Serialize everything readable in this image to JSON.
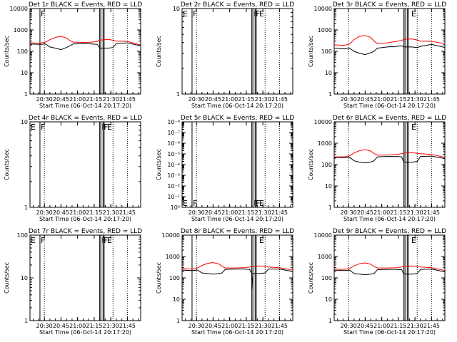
{
  "figure": {
    "start_time_label": "Start Time (06-Oct-14 20:17:20)",
    "ylabel": "Counts/sec",
    "x_tick_labels": [
      "20:30",
      "20:45",
      "21:00",
      "21:15",
      "21:30",
      "21:45"
    ],
    "colors": {
      "events": "#000000",
      "lld": "#ff0000"
    }
  },
  "chart_data": [
    {
      "type": "line",
      "title": "Det 1r BLACK = Events, RED = LLD",
      "ylabel": "Counts/sec",
      "xlabel": "Start Time (06-Oct-14 20:17:20)",
      "y_scale": "log",
      "ylim": [
        1,
        10000
      ],
      "y_tick_labels": [
        "1",
        "10",
        "100",
        "1000",
        "10000"
      ],
      "x_tick_labels": [
        "20:30",
        "20:45",
        "21:00",
        "21:15",
        "21:30",
        "21:45"
      ],
      "xlim": [
        "20:17",
        "21:57"
      ],
      "series": [
        {
          "name": "Events",
          "color": "#000000",
          "x": [
            "20:17",
            "20:26",
            "20:31",
            "20:35",
            "20:40",
            "20:45",
            "20:50",
            "20:53",
            "20:56",
            "21:05",
            "21:13",
            "21:18",
            "21:20",
            "21:27",
            "21:32",
            "21:35",
            "21:45",
            "21:57"
          ],
          "y": [
            220,
            210,
            220,
            160,
            140,
            120,
            150,
            180,
            220,
            230,
            220,
            210,
            140,
            140,
            150,
            230,
            250,
            180
          ]
        },
        {
          "name": "LLD",
          "color": "#ff0000",
          "x": [
            "20:17",
            "20:26",
            "20:31",
            "20:35",
            "20:40",
            "20:45",
            "20:50",
            "20:53",
            "20:56",
            "21:05",
            "21:13",
            "21:18",
            "21:20",
            "21:27",
            "21:32",
            "21:35",
            "21:45",
            "21:57"
          ],
          "y": [
            250,
            240,
            270,
            350,
            450,
            500,
            420,
            320,
            270,
            260,
            270,
            290,
            330,
            360,
            330,
            300,
            290,
            200
          ]
        }
      ],
      "markers": [
        {
          "label": "F",
          "x": "20:26"
        }
      ],
      "solid_vlines": [
        "20:26",
        "21:20",
        "21:21",
        "21:23",
        "21:24"
      ],
      "dotted_vlines": [
        "20:30",
        "21:32",
        "21:45"
      ]
    },
    {
      "type": "line",
      "title": "Det 2r BLACK = Events, RED = LLD",
      "ylabel": "Counts/sec",
      "xlabel": "Start Time (06-Oct-14 20:17:20)",
      "y_scale": "log",
      "ylim": [
        1,
        10
      ],
      "y_tick_labels": [
        "1",
        "10"
      ],
      "x_tick_labels": [
        "20:30",
        "20:45",
        "21:00",
        "21:15",
        "21:30",
        "21:45"
      ],
      "xlim": [
        "20:17",
        "21:57"
      ],
      "series": [],
      "markers": [
        {
          "label": "E",
          "x": "20:17"
        },
        {
          "label": "F",
          "x": "20:26"
        },
        {
          "label": "F",
          "x": "21:21"
        },
        {
          "label": "F",
          "x": "21:23"
        },
        {
          "label": "E",
          "x": "21:26"
        }
      ],
      "solid_vlines": [
        "20:26",
        "21:20",
        "21:21",
        "21:23",
        "21:24"
      ],
      "dotted_vlines": [
        "20:30",
        "21:32",
        "21:45"
      ]
    },
    {
      "type": "line",
      "title": "Det 3r BLACK = Events, RED = LLD",
      "ylabel": "Counts/sec",
      "xlabel": "Start Time (06-Oct-14 20:17:20)",
      "y_scale": "log",
      "ylim": [
        1,
        10000
      ],
      "y_tick_labels": [
        "1",
        "10",
        "100",
        "1000",
        "10000"
      ],
      "x_tick_labels": [
        "20:30",
        "20:45",
        "21:00",
        "21:15",
        "21:30",
        "21:45"
      ],
      "xlim": [
        "20:17",
        "21:57"
      ],
      "series": [
        {
          "name": "Events",
          "color": "#000000",
          "x": [
            "20:17",
            "20:26",
            "20:31",
            "20:35",
            "20:40",
            "20:45",
            "20:50",
            "20:53",
            "20:56",
            "21:05",
            "21:13",
            "21:18",
            "21:20",
            "21:27",
            "21:32",
            "21:35",
            "21:45",
            "21:57"
          ],
          "y": [
            140,
            130,
            140,
            100,
            80,
            70,
            85,
            100,
            140,
            160,
            170,
            180,
            160,
            160,
            150,
            170,
            210,
            150
          ]
        },
        {
          "name": "LLD",
          "color": "#ff0000",
          "x": [
            "20:17",
            "20:26",
            "20:31",
            "20:35",
            "20:40",
            "20:45",
            "20:50",
            "20:53",
            "20:56",
            "21:05",
            "21:13",
            "21:18",
            "21:20",
            "21:27",
            "21:32",
            "21:35",
            "21:45",
            "21:57"
          ],
          "y": [
            200,
            190,
            220,
            350,
            500,
            550,
            450,
            300,
            230,
            250,
            290,
            320,
            360,
            380,
            340,
            300,
            290,
            230
          ]
        }
      ],
      "markers": [
        {
          "label": "E",
          "x": "21:26"
        }
      ],
      "solid_vlines": [
        "21:20",
        "21:21",
        "21:23",
        "21:24"
      ],
      "dotted_vlines": [
        "20:30",
        "21:32",
        "21:45"
      ]
    },
    {
      "type": "line",
      "title": "Det 4r BLACK = Events, RED = LLD",
      "ylabel": "Counts/sec",
      "xlabel": "Start Time (06-Oct-14 20:17:20)",
      "y_scale": "log",
      "ylim": [
        1,
        10
      ],
      "y_tick_labels": [
        "1",
        "10"
      ],
      "x_tick_labels": [
        "20:30",
        "20:45",
        "21:00",
        "21:15",
        "21:30",
        "21:45"
      ],
      "xlim": [
        "20:17",
        "21:57"
      ],
      "series": [],
      "markers": [
        {
          "label": "E",
          "x": "20:17"
        },
        {
          "label": "F",
          "x": "20:26"
        },
        {
          "label": "F",
          "x": "21:21"
        },
        {
          "label": "F",
          "x": "21:23"
        },
        {
          "label": "E",
          "x": "21:26"
        }
      ],
      "solid_vlines": [
        "20:26",
        "21:20",
        "21:21",
        "21:23",
        "21:24"
      ],
      "dotted_vlines": [
        "20:30",
        "21:32",
        "21:45"
      ]
    },
    {
      "type": "line",
      "title": "Det 5r BLACK = Events, RED = LLD",
      "ylabel": "Counts/sec",
      "xlabel": "Start Time (06-Oct-14 20:17:20)",
      "y_scale": "log",
      "ylim": [
        1,
        1e-08
      ],
      "y_tick_labels": [
        "10⁰",
        "10⁻¹",
        "10⁻²",
        "10⁻³",
        "10⁻⁴",
        "10⁻⁵",
        "10⁻⁶",
        "10⁻⁷",
        "10⁻⁸"
      ],
      "x_tick_labels": [
        "20:30",
        "20:45",
        "21:00",
        "21:15",
        "21:30",
        "21:45"
      ],
      "xlim": [
        "20:17",
        "21:57"
      ],
      "series": [],
      "markers": [
        {
          "label": "E",
          "x": "20:17"
        },
        {
          "label": "F",
          "x": "20:26"
        },
        {
          "label": "F",
          "x": "21:21"
        },
        {
          "label": "F",
          "x": "21:23"
        },
        {
          "label": "E",
          "x": "21:26"
        }
      ],
      "solid_vlines": [
        "20:26",
        "21:20",
        "21:21",
        "21:23",
        "21:24"
      ],
      "dotted_vlines": [
        "20:30",
        "21:32",
        "21:45"
      ]
    },
    {
      "type": "line",
      "title": "Det 6r BLACK = Events, RED = LLD",
      "ylabel": "Counts/sec",
      "xlabel": "Start Time (06-Oct-14 20:17:20)",
      "y_scale": "log",
      "ylim": [
        1,
        10000
      ],
      "y_tick_labels": [
        "1",
        "10",
        "100",
        "1000",
        "10000"
      ],
      "x_tick_labels": [
        "20:30",
        "20:45",
        "21:00",
        "21:15",
        "21:30",
        "21:45"
      ],
      "xlim": [
        "20:17",
        "21:57"
      ],
      "series": [
        {
          "name": "Events",
          "color": "#000000",
          "x": [
            "20:17",
            "20:26",
            "20:31",
            "20:35",
            "20:40",
            "20:45",
            "20:50",
            "20:53",
            "20:56",
            "21:05",
            "21:13",
            "21:18",
            "21:20",
            "21:27",
            "21:32",
            "21:35",
            "21:45",
            "21:57"
          ],
          "y": [
            220,
            210,
            220,
            150,
            130,
            120,
            130,
            150,
            230,
            240,
            240,
            230,
            130,
            130,
            140,
            240,
            250,
            190
          ]
        },
        {
          "name": "LLD",
          "color": "#ff0000",
          "x": [
            "20:17",
            "20:26",
            "20:31",
            "20:35",
            "20:40",
            "20:45",
            "20:50",
            "20:53",
            "20:56",
            "21:05",
            "21:13",
            "21:18",
            "21:20",
            "21:27",
            "21:32",
            "21:35",
            "21:45",
            "21:57"
          ],
          "y": [
            230,
            230,
            260,
            350,
            450,
            500,
            430,
            330,
            280,
            280,
            300,
            320,
            350,
            360,
            340,
            320,
            300,
            220
          ]
        }
      ],
      "markers": [
        {
          "label": "E",
          "x": "21:26"
        }
      ],
      "solid_vlines": [
        "21:20",
        "21:21",
        "21:23",
        "21:24"
      ],
      "dotted_vlines": [
        "20:30",
        "21:32",
        "21:45"
      ]
    },
    {
      "type": "line",
      "title": "Det 7r BLACK = Events, RED = LLD",
      "ylabel": "Counts/sec",
      "xlabel": "Start Time (06-Oct-14 20:17:20)",
      "y_scale": "log",
      "ylim": [
        1,
        100
      ],
      "y_tick_labels": [
        "1",
        "10",
        "100"
      ],
      "x_tick_labels": [
        "20:30",
        "20:45",
        "21:00",
        "21:15",
        "21:30",
        "21:45"
      ],
      "xlim": [
        "20:17",
        "21:57"
      ],
      "series": [],
      "markers": [
        {
          "label": "E",
          "x": "20:17"
        },
        {
          "label": "F",
          "x": "20:26"
        },
        {
          "label": "F",
          "x": "21:21"
        },
        {
          "label": "F",
          "x": "21:23"
        },
        {
          "label": "E",
          "x": "21:26"
        }
      ],
      "solid_vlines": [
        "20:26",
        "21:20",
        "21:21",
        "21:23",
        "21:24"
      ],
      "dotted_vlines": [
        "20:30",
        "21:32",
        "21:45"
      ]
    },
    {
      "type": "line",
      "title": "Det 8r BLACK = Events, RED = LLD",
      "ylabel": "Counts/sec",
      "xlabel": "Start Time (06-Oct-14 20:17:20)",
      "y_scale": "log",
      "ylim": [
        1,
        10000
      ],
      "y_tick_labels": [
        "1",
        "10",
        "100",
        "1000",
        "10000"
      ],
      "x_tick_labels": [
        "20:30",
        "20:45",
        "21:00",
        "21:15",
        "21:30",
        "21:45"
      ],
      "xlim": [
        "20:17",
        "21:57"
      ],
      "series": [
        {
          "name": "Events",
          "color": "#000000",
          "x": [
            "20:17",
            "20:26",
            "20:31",
            "20:35",
            "20:40",
            "20:45",
            "20:50",
            "20:53",
            "20:56",
            "21:05",
            "21:13",
            "21:18",
            "21:20",
            "21:20",
            "21:21",
            "21:27",
            "21:32",
            "21:35",
            "21:45",
            "21:57"
          ],
          "y": [
            230,
            220,
            230,
            170,
            160,
            150,
            160,
            170,
            250,
            260,
            260,
            250,
            160,
            30,
            160,
            160,
            170,
            260,
            260,
            200
          ]
        },
        {
          "name": "LLD",
          "color": "#ff0000",
          "x": [
            "20:17",
            "20:26",
            "20:31",
            "20:35",
            "20:40",
            "20:45",
            "20:50",
            "20:53",
            "20:56",
            "21:05",
            "21:13",
            "21:18",
            "21:20",
            "21:27",
            "21:32",
            "21:35",
            "21:45",
            "21:57"
          ],
          "y": [
            270,
            260,
            290,
            380,
            480,
            520,
            450,
            350,
            290,
            290,
            300,
            320,
            350,
            360,
            340,
            320,
            300,
            230
          ]
        }
      ],
      "markers": [
        {
          "label": "E",
          "x": "21:26"
        }
      ],
      "solid_vlines": [
        "20:26",
        "21:20",
        "21:21",
        "21:23",
        "21:24"
      ],
      "dotted_vlines": [
        "20:30",
        "21:32",
        "21:45"
      ]
    },
    {
      "type": "line",
      "title": "Det 9r BLACK = Events, RED = LLD",
      "ylabel": "Counts/sec",
      "xlabel": "Start Time (06-Oct-14 20:17:20)",
      "y_scale": "log",
      "ylim": [
        1,
        10000
      ],
      "y_tick_labels": [
        "1",
        "10",
        "100",
        "1000",
        "10000"
      ],
      "x_tick_labels": [
        "20:30",
        "20:45",
        "21:00",
        "21:15",
        "21:30",
        "21:45"
      ],
      "xlim": [
        "20:17",
        "21:57"
      ],
      "series": [
        {
          "name": "Events",
          "color": "#000000",
          "x": [
            "20:17",
            "20:26",
            "20:31",
            "20:35",
            "20:40",
            "20:45",
            "20:50",
            "20:53",
            "20:56",
            "21:05",
            "21:13",
            "21:18",
            "21:20",
            "21:27",
            "21:32",
            "21:35",
            "21:45",
            "21:57"
          ],
          "y": [
            230,
            220,
            230,
            160,
            150,
            140,
            150,
            160,
            240,
            250,
            250,
            240,
            150,
            150,
            160,
            250,
            260,
            190
          ]
        },
        {
          "name": "LLD",
          "color": "#ff0000",
          "x": [
            "20:17",
            "20:26",
            "20:31",
            "20:35",
            "20:40",
            "20:45",
            "20:50",
            "20:53",
            "20:56",
            "21:05",
            "21:13",
            "21:18",
            "21:20",
            "21:27",
            "21:32",
            "21:35",
            "21:45",
            "21:57"
          ],
          "y": [
            260,
            250,
            280,
            360,
            460,
            500,
            440,
            340,
            290,
            290,
            300,
            320,
            350,
            360,
            340,
            320,
            300,
            220
          ]
        }
      ],
      "markers": [
        {
          "label": "E",
          "x": "21:26"
        }
      ],
      "solid_vlines": [
        "21:20",
        "21:21",
        "21:23",
        "21:24"
      ],
      "dotted_vlines": [
        "20:30",
        "21:32",
        "21:45"
      ]
    }
  ]
}
